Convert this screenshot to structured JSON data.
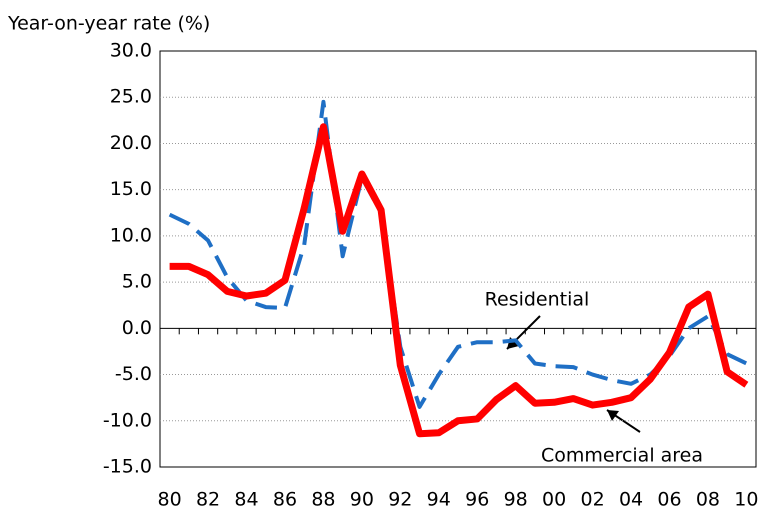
{
  "chart_data": {
    "type": "line",
    "y_axis_label": "Year-on-year rate (%)",
    "categories": [
      "80",
      null,
      "82",
      null,
      "84",
      null,
      "86",
      null,
      "88",
      null,
      "90",
      null,
      "92",
      null,
      "94",
      null,
      "96",
      null,
      "98",
      null,
      "00",
      null,
      "02",
      null,
      "04",
      null,
      "06",
      null,
      "08",
      null,
      "10"
    ],
    "series": [
      {
        "name": "Residential",
        "color": "#1f6fc5",
        "dash": true,
        "values": [
          12.3,
          11.3,
          9.5,
          5.5,
          3.0,
          2.3,
          2.2,
          9.0,
          24.5,
          7.8,
          16.3,
          12.5,
          -2.0,
          -8.5,
          -5.0,
          -2.0,
          -1.5,
          -1.5,
          -1.3,
          -3.8,
          -4.1,
          -4.2,
          -5.0,
          -5.6,
          -6.0,
          -5.0,
          -3.0,
          0.0,
          1.3,
          -2.8,
          -3.8
        ]
      },
      {
        "name": "Commercial area",
        "color": "#ff0000",
        "dash": false,
        "values": [
          6.7,
          6.7,
          5.8,
          4.0,
          3.5,
          3.8,
          5.2,
          13.0,
          21.8,
          10.5,
          16.7,
          12.8,
          -4.0,
          -11.4,
          -11.3,
          -10.0,
          -9.8,
          -7.7,
          -6.2,
          -8.1,
          -8.0,
          -7.6,
          -8.3,
          -8.0,
          -7.5,
          -5.5,
          -2.6,
          2.3,
          3.7,
          -4.7,
          -6.1
        ]
      }
    ],
    "ylim": [
      -15,
      30
    ],
    "yticks": [
      {
        "value": -15,
        "label": "-15.0"
      },
      {
        "value": -10,
        "label": "-10.0"
      },
      {
        "value": -5,
        "label": "-5.0"
      },
      {
        "value": 0,
        "label": "0.0"
      },
      {
        "value": 5,
        "label": "5.0"
      },
      {
        "value": 10,
        "label": "10.0"
      },
      {
        "value": 15,
        "label": "15.0"
      },
      {
        "value": 20,
        "label": "20.0"
      },
      {
        "value": 25,
        "label": "25.0"
      },
      {
        "value": 30,
        "label": "30.0"
      }
    ],
    "grid": true
  }
}
